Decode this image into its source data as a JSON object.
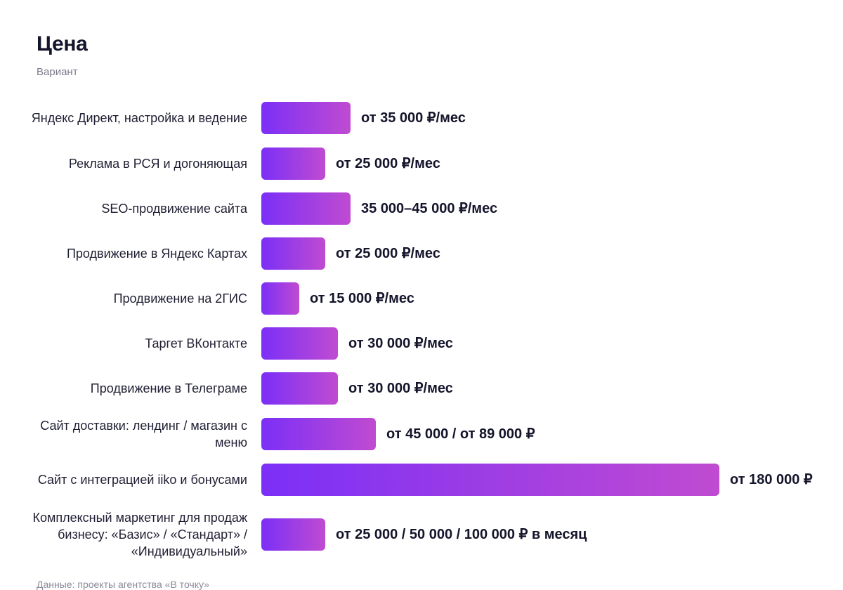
{
  "title": "Цена",
  "subtitle": "Вариант",
  "footnote": "Данные: проекты агентства «В точку»",
  "colors": {
    "bar_gradient_start": "#7b2ff7",
    "bar_gradient_end": "#c04bd1"
  },
  "chart_data": {
    "type": "bar",
    "orientation": "horizontal",
    "ylabel": "Вариант",
    "xlabel": "Цена",
    "unit": "₽",
    "categories": [
      "Яндекс Директ, настройка и ведение",
      "Реклама в РСЯ и догоняющая",
      "SEO-продвижение сайта",
      "Продвижение в Яндекс Картах",
      "Продвижение на 2ГИС",
      "Таргет ВКонтакте",
      "Продвижение в Телеграме",
      "Сайт доставки: лендинг / магазин с меню",
      "Сайт с интеграцией iiko и бонусами",
      "Комплексный маркетинг для продаж бизнесу: «Базис» / «Стандарт» / «Индивидуальный»"
    ],
    "values": [
      35000,
      25000,
      35000,
      25000,
      15000,
      30000,
      30000,
      45000,
      180000,
      25000
    ],
    "value_labels": [
      "от 35 000 ₽/мес",
      "от 25 000 ₽/мес",
      "35 000–45 000 ₽/мес",
      "от 25 000 ₽/мес",
      "от 15 000 ₽/мес",
      "от 30 000 ₽/мес",
      "от 30 000 ₽/мес",
      "от 45 000 / от 89 000 ₽",
      "от 180 000 ₽",
      "от 25 000 / 50 000 / 100 000 ₽ в месяц"
    ],
    "xlim": [
      0,
      180000
    ],
    "grid": false,
    "legend": "none"
  }
}
